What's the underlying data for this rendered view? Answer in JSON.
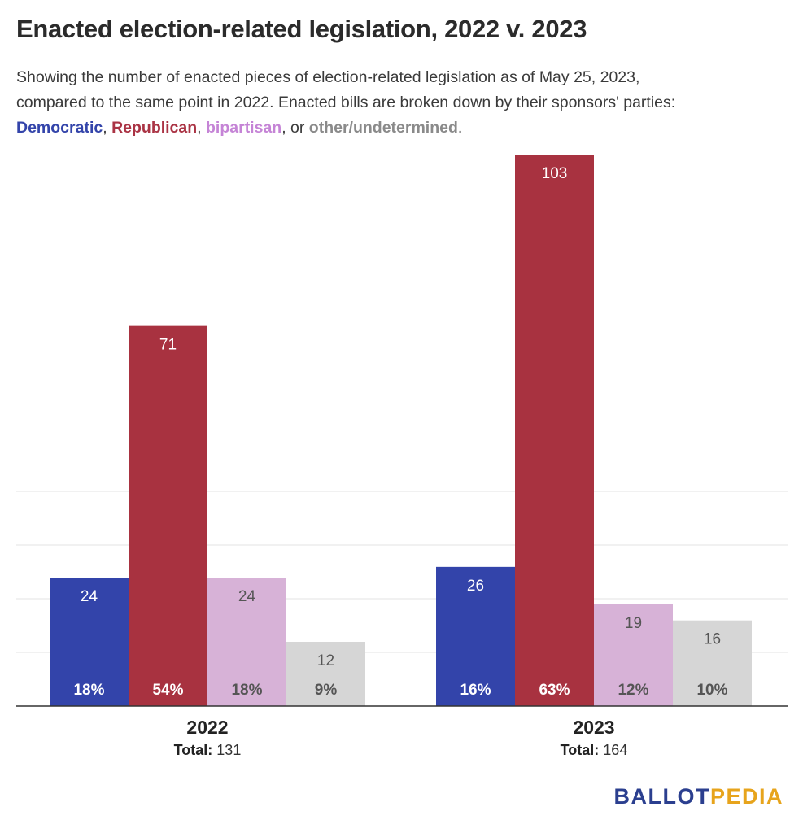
{
  "title": "Enacted election-related legislation, 2022 v. 2023",
  "subtitle": {
    "line1": "Showing the number of enacted pieces of election-related legislation as of May 25, 2023,",
    "line2": "compared to the same point in 2022. Enacted bills are broken down by their sponsors' parties:",
    "dem": "Democratic",
    "sep1": ", ",
    "rep": "Republican",
    "sep2": ", ",
    "bip": "bipartisan",
    "sep3": ", or ",
    "oth": "other/undetermined",
    "end": "."
  },
  "logo": {
    "part1": "BALLOT",
    "part2": "PEDIA"
  },
  "chart_data": {
    "type": "bar",
    "categories": [
      "2022",
      "2023"
    ],
    "total_label": "Total:",
    "totals": [
      131,
      164
    ],
    "series": [
      {
        "name": "Democratic",
        "color": "#3344aa",
        "values": [
          24,
          26
        ],
        "percents": [
          "18%",
          "16%"
        ],
        "label_color": "#ffffff"
      },
      {
        "name": "Republican",
        "color": "#a83240",
        "values": [
          71,
          103
        ],
        "percents": [
          "54%",
          "63%"
        ],
        "label_color": "#ffffff"
      },
      {
        "name": "bipartisan",
        "color": "#d7b2d7",
        "values": [
          24,
          19
        ],
        "percents": [
          "18%",
          "12%"
        ],
        "label_color": "#555555"
      },
      {
        "name": "other/undetermined",
        "color": "#d6d6d6",
        "values": [
          12,
          16
        ],
        "percents": [
          "9%",
          "10%"
        ],
        "label_color": "#555555"
      }
    ],
    "ylim": [
      0,
      103
    ],
    "grid": true
  }
}
